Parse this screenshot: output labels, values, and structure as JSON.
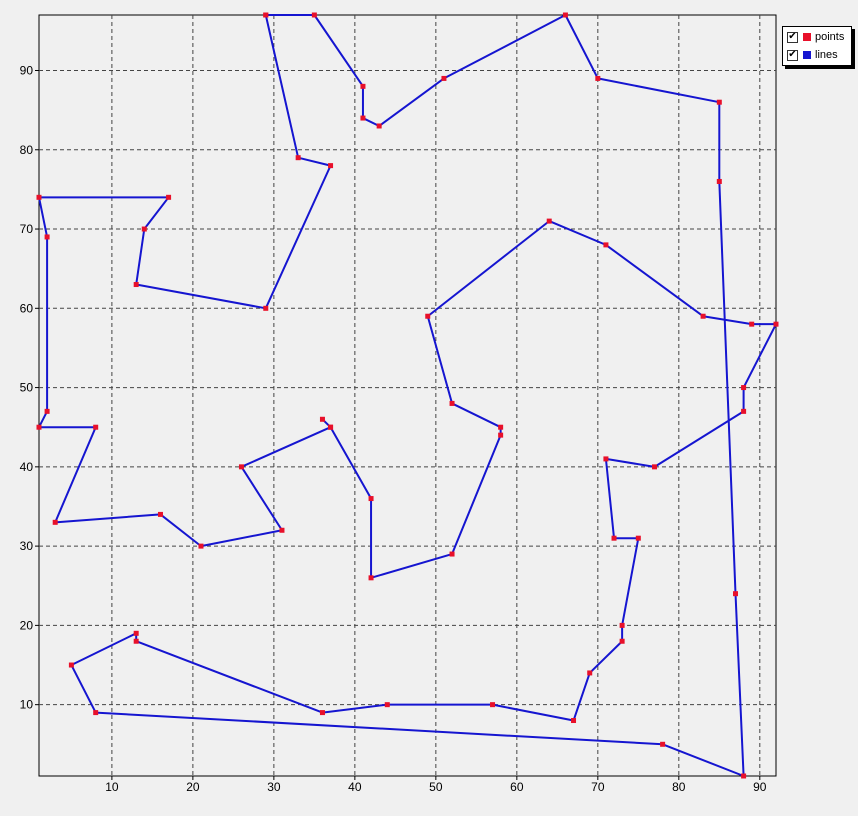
{
  "chart_data": {
    "type": "line",
    "title": "",
    "xlabel": "",
    "ylabel": "",
    "xlim": [
      1,
      92
    ],
    "ylim": [
      1,
      97
    ],
    "grid": true,
    "xticks": [
      10,
      20,
      30,
      40,
      50,
      60,
      70,
      80,
      90
    ],
    "yticks": [
      10,
      20,
      30,
      40,
      50,
      60,
      70,
      80,
      90
    ],
    "legend_position": "top-right",
    "colors": {
      "points": "#e8102a",
      "lines": "#1515d0"
    },
    "series": [
      {
        "name": "points/lines",
        "points": [
          [
            29,
            97
          ],
          [
            35,
            97
          ],
          [
            41,
            88
          ],
          [
            41,
            84
          ],
          [
            43,
            83
          ],
          [
            51,
            89
          ],
          [
            66,
            97
          ],
          [
            70,
            89
          ],
          [
            85,
            86
          ],
          [
            85,
            76
          ],
          [
            87,
            24
          ],
          [
            88,
            1
          ],
          [
            78,
            5
          ],
          [
            8,
            9
          ],
          [
            5,
            15
          ],
          [
            13,
            19
          ],
          [
            13,
            18
          ],
          [
            36,
            9
          ],
          [
            44,
            10
          ],
          [
            57,
            10
          ],
          [
            67,
            8
          ],
          [
            69,
            14
          ],
          [
            73,
            18
          ],
          [
            73,
            20
          ],
          [
            75,
            31
          ],
          [
            72,
            31
          ],
          [
            71,
            41
          ],
          [
            77,
            40
          ],
          [
            88,
            47
          ],
          [
            88,
            50
          ],
          [
            92,
            58
          ],
          [
            89,
            58
          ],
          [
            83,
            59
          ],
          [
            71,
            68
          ],
          [
            64,
            71
          ],
          [
            49,
            59
          ],
          [
            52,
            48
          ],
          [
            58,
            45
          ],
          [
            58,
            44
          ],
          [
            52,
            29
          ],
          [
            42,
            26
          ],
          [
            42,
            36
          ],
          [
            37,
            45
          ],
          [
            36,
            46
          ],
          [
            37,
            45
          ],
          [
            26,
            40
          ],
          [
            31,
            32
          ],
          [
            21,
            30
          ],
          [
            16,
            34
          ],
          [
            3,
            33
          ],
          [
            8,
            45
          ],
          [
            1,
            45
          ],
          [
            2,
            47
          ],
          [
            2,
            69
          ],
          [
            1,
            74
          ],
          [
            17,
            74
          ],
          [
            14,
            70
          ],
          [
            13,
            63
          ],
          [
            29,
            60
          ],
          [
            37,
            78
          ],
          [
            33,
            79
          ],
          [
            29,
            97
          ]
        ]
      }
    ]
  },
  "legend": {
    "items": [
      {
        "label": "points",
        "checked": "✔"
      },
      {
        "label": "lines",
        "checked": "✔"
      }
    ]
  }
}
